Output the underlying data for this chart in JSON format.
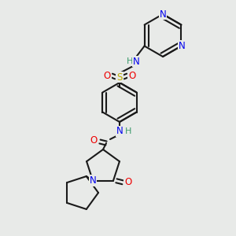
{
  "bg_color": "#e8eae8",
  "bond_color": "#1a1a1a",
  "bond_width": 1.5,
  "atom_colors": {
    "N": "#0000ee",
    "O": "#ee0000",
    "S": "#bbaa00",
    "HN": "#3a9a6a",
    "C": "#1a1a1a"
  },
  "font_size": 8.5,
  "fig_size": [
    3.0,
    3.0
  ],
  "dpi": 100
}
